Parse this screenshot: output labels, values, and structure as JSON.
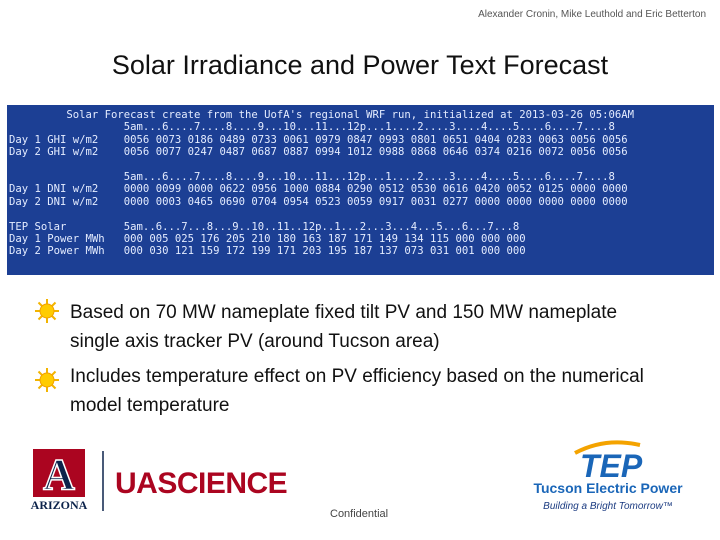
{
  "header": {
    "author": "Alexander Cronin, Mike Leuthold and Eric Betterton"
  },
  "title": "Solar Irradiance and Power Text Forecast",
  "terminal": {
    "lines": [
      "         Solar Forecast create from the UofA's regional WRF run, initialized at 2013-03-26 05:06AM",
      "                  5am...6....7....8....9...10...11...12p...1....2....3....4....5....6....7....8",
      "Day 1 GHI w/m2    0056 0073 0186 0489 0733 0061 0979 0847 0993 0801 0651 0404 0283 0063 0056 0056",
      "Day 2 GHI w/m2    0056 0077 0247 0487 0687 0887 0994 1012 0988 0868 0646 0374 0216 0072 0056 0056",
      "",
      "                  5am...6....7....8....9...10...11...12p...1....2....3....4....5....6....7....8",
      "Day 1 DNI w/m2    0000 0099 0000 0622 0956 1000 0884 0290 0512 0530 0616 0420 0052 0125 0000 0000",
      "Day 2 DNI w/m2    0000 0003 0465 0690 0704 0954 0523 0059 0917 0031 0277 0000 0000 0000 0000 0000",
      "",
      "TEP Solar         5am..6...7...8...9..10..11..12p..1...2...3...4...5...6...7...8",
      "Day 1 Power MWh   000 005 025 176 205 210 180 163 187 171 149 134 115 000 000 000",
      "Day 2 Power MWh   000 030 121 159 172 199 171 203 195 187 137 073 031 001 000 000"
    ]
  },
  "bullets": [
    "Based on 70 MW nameplate fixed tilt PV and 150 MW nameplate single axis tracker PV (around Tucson area)",
    "Includes temperature effect on PV efficiency based on the numerical model temperature"
  ],
  "logos": {
    "ua": {
      "mark": "A",
      "name": "ARIZONA",
      "wordmark": "UASCIENCE"
    },
    "tep": {
      "mark": "TEP",
      "name": "Tucson Electric Power",
      "tagline": "Building a Bright Tomorrow™"
    }
  },
  "footer": "Confidential"
}
